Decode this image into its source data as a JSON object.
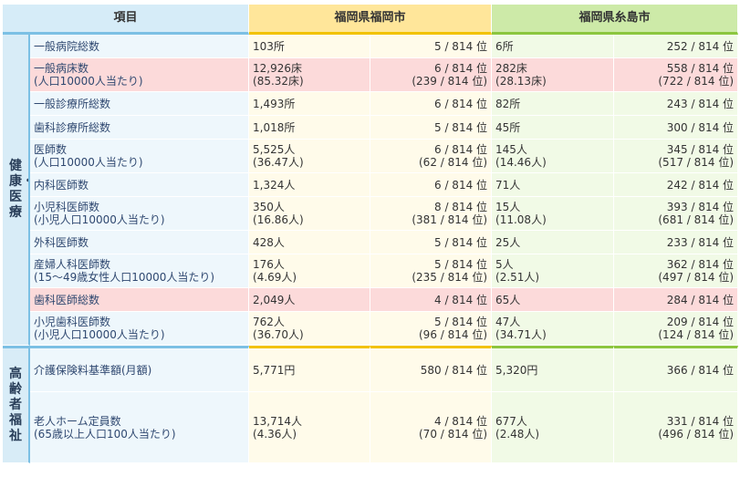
{
  "headers": {
    "item": "項目",
    "city_a": "福岡県福岡市",
    "city_b": "福岡県糸島市"
  },
  "categories": {
    "health": "健康・医療",
    "elderly": "高齢者福祉"
  },
  "rows": [
    {
      "label": [
        "一般病院総数"
      ],
      "a_val": [
        "103所"
      ],
      "a_rank": [
        "5 / 814 位"
      ],
      "b_val": [
        "6所"
      ],
      "b_rank": [
        "252 / 814 位"
      ]
    },
    {
      "label": [
        "一般病床数",
        "(人口10000人当たり)"
      ],
      "a_val": [
        "12,926床",
        "(85.32床)"
      ],
      "a_rank": [
        "6 / 814 位",
        "(239 / 814 位)"
      ],
      "b_val": [
        "282床",
        "(28.13床)"
      ],
      "b_rank": [
        "558 / 814 位",
        "(722 / 814 位)"
      ]
    },
    {
      "label": [
        "一般診療所総数"
      ],
      "a_val": [
        "1,493所"
      ],
      "a_rank": [
        "6 / 814 位"
      ],
      "b_val": [
        "82所"
      ],
      "b_rank": [
        "243 / 814 位"
      ]
    },
    {
      "label": [
        "歯科診療所総数"
      ],
      "a_val": [
        "1,018所"
      ],
      "a_rank": [
        "5 / 814 位"
      ],
      "b_val": [
        "45所"
      ],
      "b_rank": [
        "300 / 814 位"
      ]
    },
    {
      "label": [
        "医師数",
        "(人口10000人当たり)"
      ],
      "a_val": [
        "5,525人",
        "(36.47人)"
      ],
      "a_rank": [
        "6 / 814 位",
        "(62 / 814 位)"
      ],
      "b_val": [
        "145人",
        "(14.46人)"
      ],
      "b_rank": [
        "345 / 814 位",
        "(517 / 814 位)"
      ]
    },
    {
      "label": [
        "内科医師数"
      ],
      "a_val": [
        "1,324人"
      ],
      "a_rank": [
        "6 / 814 位"
      ],
      "b_val": [
        "71人"
      ],
      "b_rank": [
        "242 / 814 位"
      ]
    },
    {
      "label": [
        "小児科医師数",
        "(小児人口10000人当たり)"
      ],
      "a_val": [
        "350人",
        "(16.86人)"
      ],
      "a_rank": [
        "8 / 814 位",
        "(381 / 814 位)"
      ],
      "b_val": [
        "15人",
        "(11.08人)"
      ],
      "b_rank": [
        "393 / 814 位",
        "(681 / 814 位)"
      ]
    },
    {
      "label": [
        "外科医師数"
      ],
      "a_val": [
        "428人"
      ],
      "a_rank": [
        "5 / 814 位"
      ],
      "b_val": [
        "25人"
      ],
      "b_rank": [
        "233 / 814 位"
      ]
    },
    {
      "label": [
        "産婦人科医師数",
        "(15～49歳女性人口10000人当たり)"
      ],
      "a_val": [
        "176人",
        "(4.69人)"
      ],
      "a_rank": [
        "5 / 814 位",
        "(235 / 814 位)"
      ],
      "b_val": [
        "5人",
        "(2.51人)"
      ],
      "b_rank": [
        "362 / 814 位",
        "(497 / 814 位)"
      ]
    },
    {
      "label": [
        "歯科医師総数"
      ],
      "a_val": [
        "2,049人"
      ],
      "a_rank": [
        "4 / 814 位"
      ],
      "b_val": [
        "65人"
      ],
      "b_rank": [
        "284 / 814 位"
      ]
    },
    {
      "label": [
        "小児歯科医師数",
        "(小児人口10000人当たり)"
      ],
      "a_val": [
        "762人",
        "(36.70人)"
      ],
      "a_rank": [
        "5 / 814 位",
        "(96 / 814 位)"
      ],
      "b_val": [
        "47人",
        "(34.71人)"
      ],
      "b_rank": [
        "209 / 814 位",
        "(124 / 814 位)"
      ]
    },
    {
      "label": [
        "介護保険料基準額(月額)"
      ],
      "a_val": [
        "5,771円"
      ],
      "a_rank": [
        "580 / 814 位"
      ],
      "b_val": [
        "5,320円"
      ],
      "b_rank": [
        "366 / 814 位"
      ]
    },
    {
      "label": [
        "老人ホーム定員数",
        "(65歳以上人口100人当たり)"
      ],
      "a_val": [
        "13,714人",
        "(4.36人)"
      ],
      "a_rank": [
        "4 / 814 位",
        "(70 / 814 位)"
      ],
      "b_val": [
        "677人",
        "(2.48人)"
      ],
      "b_rank": [
        "331 / 814 位",
        "(496 / 814 位)"
      ]
    }
  ]
}
